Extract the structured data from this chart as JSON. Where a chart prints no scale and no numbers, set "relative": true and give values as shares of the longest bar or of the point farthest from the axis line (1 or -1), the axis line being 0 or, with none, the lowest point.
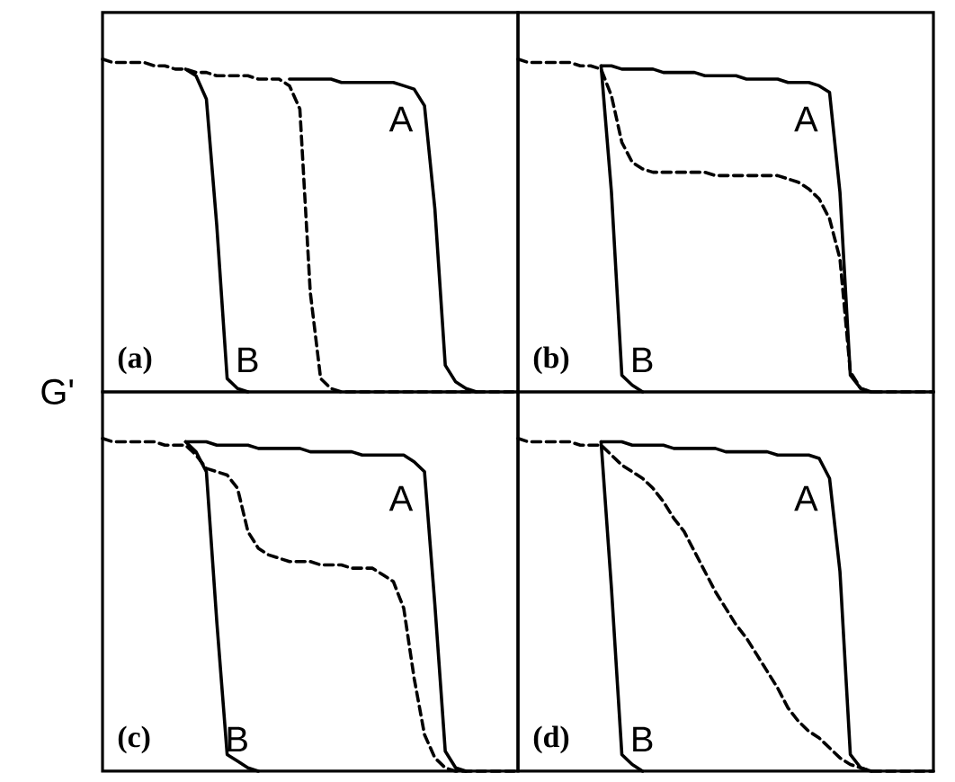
{
  "chart_data": [
    {
      "type": "line",
      "relative": true,
      "ylabel": "G'",
      "tick_labels": false,
      "annotations": [
        "(a)"
      ],
      "categories": [
        null,
        null,
        null,
        null,
        null,
        null,
        null,
        null,
        null,
        null,
        null,
        null,
        null,
        null,
        null,
        null,
        null,
        null,
        null,
        null,
        null,
        null,
        null,
        null,
        null,
        null,
        null,
        null,
        null,
        null,
        null,
        null,
        null,
        null,
        null,
        null,
        null,
        null,
        null,
        null,
        null
      ],
      "series": [
        {
          "name": "A",
          "color": "#000000",
          "line_style": "solid",
          "values": [
            null,
            null,
            null,
            null,
            null,
            null,
            null,
            null,
            null,
            null,
            null,
            null,
            null,
            null,
            null,
            null,
            null,
            null,
            0.94,
            0.94,
            0.94,
            0.94,
            0.94,
            0.93,
            0.93,
            0.93,
            0.93,
            0.93,
            0.93,
            0.92,
            0.91,
            0.86,
            0.55,
            0.08,
            0.03,
            0.01,
            0,
            null,
            null,
            null,
            null
          ]
        },
        {
          "name": "B",
          "color": "#000000",
          "line_style": "solid",
          "values": [
            null,
            null,
            null,
            null,
            null,
            null,
            null,
            null,
            0.97,
            0.95,
            0.88,
            0.5,
            0.04,
            0.01,
            0,
            null,
            null,
            null,
            null,
            null,
            null,
            null,
            null,
            null,
            null,
            null,
            null,
            null,
            null,
            null,
            null,
            null,
            null,
            null,
            null,
            null,
            null,
            null,
            null,
            null,
            null
          ]
        },
        {
          "color": "#000000",
          "line_style": "dashed",
          "values": [
            1,
            0.99,
            0.99,
            0.99,
            0.99,
            0.98,
            0.98,
            0.97,
            0.97,
            0.96,
            0.96,
            0.95,
            0.95,
            0.95,
            0.95,
            0.94,
            0.94,
            0.94,
            0.92,
            0.85,
            0.3,
            0.04,
            0.01,
            0,
            0,
            0,
            0,
            0,
            0,
            0,
            0,
            0,
            0,
            0,
            0,
            0,
            0,
            0,
            0,
            0,
            0
          ]
        }
      ]
    },
    {
      "type": "line",
      "relative": true,
      "tick_labels": false,
      "annotations": [
        "(b)"
      ],
      "categories": [
        null,
        null,
        null,
        null,
        null,
        null,
        null,
        null,
        null,
        null,
        null,
        null,
        null,
        null,
        null,
        null,
        null,
        null,
        null,
        null,
        null,
        null,
        null,
        null,
        null,
        null,
        null,
        null,
        null,
        null,
        null,
        null,
        null,
        null,
        null,
        null,
        null,
        null,
        null,
        null,
        null
      ],
      "series": [
        {
          "name": "A",
          "color": "#000000",
          "line_style": "solid",
          "values": [
            null,
            null,
            null,
            null,
            null,
            null,
            null,
            null,
            0.98,
            0.98,
            0.97,
            0.97,
            0.97,
            0.97,
            0.96,
            0.96,
            0.96,
            0.96,
            0.95,
            0.95,
            0.95,
            0.95,
            0.94,
            0.94,
            0.94,
            0.94,
            0.93,
            0.93,
            0.93,
            0.92,
            0.9,
            0.6,
            0.05,
            0.01,
            0,
            null,
            null,
            null,
            null,
            null,
            null
          ]
        },
        {
          "name": "B",
          "color": "#000000",
          "line_style": "solid",
          "values": [
            null,
            null,
            null,
            null,
            null,
            null,
            null,
            null,
            0.98,
            0.6,
            0.05,
            0.02,
            0,
            null,
            null,
            null,
            null,
            null,
            null,
            null,
            null,
            null,
            null,
            null,
            null,
            null,
            null,
            null,
            null,
            null,
            null,
            null,
            null,
            null,
            null,
            null,
            null,
            null,
            null,
            null,
            null
          ]
        },
        {
          "color": "#000000",
          "line_style": "dashed",
          "values": [
            1,
            0.99,
            0.99,
            0.99,
            0.99,
            0.99,
            0.98,
            0.98,
            0.97,
            0.89,
            0.75,
            0.69,
            0.67,
            0.66,
            0.66,
            0.66,
            0.66,
            0.66,
            0.66,
            0.65,
            0.65,
            0.65,
            0.65,
            0.65,
            0.65,
            0.65,
            0.64,
            0.63,
            0.61,
            0.58,
            0.52,
            0.4,
            0.06,
            0.01,
            0,
            0,
            0,
            0,
            0,
            0,
            0
          ]
        }
      ]
    },
    {
      "type": "line",
      "relative": true,
      "tick_labels": false,
      "annotations": [
        "(c)"
      ],
      "categories": [
        null,
        null,
        null,
        null,
        null,
        null,
        null,
        null,
        null,
        null,
        null,
        null,
        null,
        null,
        null,
        null,
        null,
        null,
        null,
        null,
        null,
        null,
        null,
        null,
        null,
        null,
        null,
        null,
        null,
        null,
        null,
        null,
        null,
        null,
        null,
        null,
        null,
        null,
        null,
        null,
        null
      ],
      "series": [
        {
          "name": "A",
          "color": "#000000",
          "line_style": "solid",
          "values": [
            null,
            null,
            null,
            null,
            null,
            null,
            null,
            null,
            0.99,
            0.99,
            0.99,
            0.98,
            0.98,
            0.98,
            0.98,
            0.97,
            0.97,
            0.97,
            0.97,
            0.97,
            0.96,
            0.96,
            0.96,
            0.96,
            0.96,
            0.95,
            0.95,
            0.95,
            0.95,
            0.95,
            0.93,
            0.9,
            0.5,
            0.06,
            0.01,
            0,
            null,
            null,
            null,
            null,
            null
          ]
        },
        {
          "name": "B",
          "color": "#000000",
          "line_style": "solid",
          "values": [
            null,
            null,
            null,
            null,
            null,
            null,
            null,
            null,
            0.99,
            0.96,
            0.9,
            0.45,
            0.05,
            0.03,
            0.01,
            0,
            null,
            null,
            null,
            null,
            null,
            null,
            null,
            null,
            null,
            null,
            null,
            null,
            null,
            null,
            null,
            null,
            null,
            null,
            null,
            null,
            null,
            null,
            null,
            null,
            null
          ]
        },
        {
          "color": "#000000",
          "line_style": "dashed",
          "values": [
            1,
            0.99,
            0.99,
            0.99,
            0.99,
            0.99,
            0.98,
            0.98,
            0.98,
            0.95,
            0.91,
            0.9,
            0.89,
            0.85,
            0.72,
            0.67,
            0.65,
            0.64,
            0.63,
            0.63,
            0.63,
            0.62,
            0.62,
            0.62,
            0.61,
            0.61,
            0.61,
            0.59,
            0.57,
            0.49,
            0.28,
            0.11,
            0.04,
            0.01,
            0,
            0,
            0,
            0,
            0,
            0,
            0
          ]
        }
      ]
    },
    {
      "type": "line",
      "relative": true,
      "tick_labels": false,
      "annotations": [
        "(d)"
      ],
      "categories": [
        null,
        null,
        null,
        null,
        null,
        null,
        null,
        null,
        null,
        null,
        null,
        null,
        null,
        null,
        null,
        null,
        null,
        null,
        null,
        null,
        null,
        null,
        null,
        null,
        null,
        null,
        null,
        null,
        null,
        null,
        null,
        null,
        null,
        null,
        null,
        null,
        null,
        null,
        null,
        null,
        null
      ],
      "series": [
        {
          "name": "A",
          "color": "#000000",
          "line_style": "solid",
          "values": [
            null,
            null,
            null,
            null,
            null,
            null,
            null,
            null,
            0.99,
            0.99,
            0.99,
            0.98,
            0.98,
            0.98,
            0.98,
            0.97,
            0.97,
            0.97,
            0.97,
            0.97,
            0.96,
            0.96,
            0.96,
            0.96,
            0.96,
            0.95,
            0.95,
            0.95,
            0.95,
            0.94,
            0.88,
            0.6,
            0.05,
            0.01,
            0,
            null,
            null,
            null,
            null,
            null,
            null
          ]
        },
        {
          "name": "B",
          "color": "#000000",
          "line_style": "solid",
          "values": [
            null,
            null,
            null,
            null,
            null,
            null,
            null,
            null,
            0.99,
            0.55,
            0.05,
            0.02,
            0,
            null,
            null,
            null,
            null,
            null,
            null,
            null,
            null,
            null,
            null,
            null,
            null,
            null,
            null,
            null,
            null,
            null,
            null,
            null,
            null,
            null,
            null,
            null,
            null,
            null,
            null,
            null,
            null
          ]
        },
        {
          "color": "#000000",
          "line_style": "dashed",
          "values": [
            1,
            0.99,
            0.99,
            0.99,
            0.99,
            0.99,
            0.98,
            0.98,
            0.98,
            0.95,
            0.92,
            0.9,
            0.88,
            0.85,
            0.81,
            0.76,
            0.72,
            0.66,
            0.6,
            0.54,
            0.49,
            0.44,
            0.4,
            0.35,
            0.3,
            0.25,
            0.19,
            0.15,
            0.12,
            0.1,
            0.07,
            0.04,
            0.02,
            0.01,
            0,
            0,
            0,
            0,
            0,
            0,
            0
          ]
        }
      ]
    }
  ]
}
